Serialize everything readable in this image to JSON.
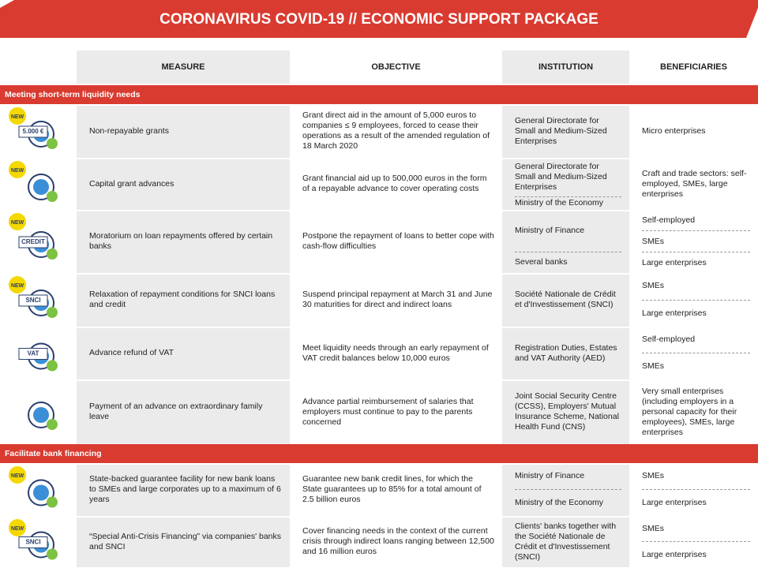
{
  "title": "CORONAVIRUS COVID-19 // ECONOMIC SUPPORT PACKAGE",
  "table": {
    "headers": [
      "MEASURE",
      "OBJECTIVE",
      "INSTITUTION",
      "BENEFICIARIES"
    ],
    "sections": [
      {
        "name": "Meeting short-term liquidity needs",
        "rows": [
          {
            "icon_texts": [
              "NEW",
              "5.000 €"
            ],
            "measure": "Non-repayable grants",
            "objective": "Grant direct aid in the amount of 5,000 euros to companies ≤ 9 employees, forced to cease their operations as a result of the amended regulation of 18 March 2020",
            "institutions": [
              "General Directorate for Small and Medium-Sized Enterprises"
            ],
            "beneficiaries": [
              "Micro enterprises"
            ]
          },
          {
            "icon_texts": [
              "NEW"
            ],
            "measure": "Capital grant advances",
            "objective": "Grant financial aid up to 500,000 euros in the form of a repayable advance to cover operating costs",
            "institutions": [
              "General Directorate for Small and Medium-Sized Enterprises",
              "Ministry of the Economy"
            ],
            "beneficiaries": [
              "Craft and trade sectors: self-employed, SMEs, large enterprises"
            ]
          },
          {
            "icon_texts": [
              "NEW",
              "CREDIT"
            ],
            "measure": "Moratorium on loan repayments offered by certain banks",
            "objective": "Postpone the repayment of loans to better cope with cash-flow difficulties",
            "institutions": [
              "Ministry of Finance",
              "Several banks"
            ],
            "beneficiaries": [
              "Self-employed",
              "SMEs",
              "Large enterprises"
            ]
          },
          {
            "icon_texts": [
              "NEW",
              "SNCI"
            ],
            "measure": "Relaxation of repayment conditions for SNCI loans and credit",
            "objective": "Suspend principal repayment at March 31 and June 30 maturities for direct and indirect loans",
            "institutions": [
              "Société Nationale de Crédit et d'Investissement (SNCI)"
            ],
            "beneficiaries": [
              "SMEs",
              "Large enterprises"
            ]
          },
          {
            "icon_texts": [
              "VAT"
            ],
            "measure": "Advance refund of VAT",
            "objective": "Meet liquidity needs through an early repayment of VAT credit balances below 10,000 euros",
            "institutions": [
              "Registration Duties, Estates and VAT Authority (AED)"
            ],
            "beneficiaries": [
              "Self-employed",
              "SMEs"
            ]
          },
          {
            "icon_texts": [],
            "measure": "Payment of an advance on extraordinary family leave",
            "objective": "Advance partial reimbursement of salaries that employers must continue to pay to the parents concerned",
            "institutions": [
              "Joint Social Security Centre (CCSS), Employers' Mutual Insurance Scheme, National Health Fund (CNS)"
            ],
            "beneficiaries": [
              "Very small enterprises (including employers in a personal capacity for their employees), SMEs, large enterprises"
            ]
          }
        ]
      },
      {
        "name": "Facilitate bank financing",
        "rows": [
          {
            "icon_texts": [
              "NEW"
            ],
            "measure": "State-backed guarantee facility for new bank loans to SMEs and large corporates up to a maximum of 6 years",
            "objective": "Guarantee new bank credit lines, for which the State guarantees up to 85% for a total amount of 2.5 billion euros",
            "institutions": [
              "Ministry of Finance",
              "Ministry of the Economy"
            ],
            "beneficiaries": [
              "SMEs",
              "Large enterprises"
            ]
          },
          {
            "icon_texts": [
              "NEW",
              "SNCI"
            ],
            "measure": "“Special Anti-Crisis Financing” via companies' banks and SNCI",
            "objective": "Cover financing needs in the context of the current crisis through indirect loans ranging between 12,500 and 16 million euros",
            "institutions": [
              "Clients' banks together with the Société Nationale de Crédit et d'Investissement (SNCI)"
            ],
            "beneficiaries": [
              "SMEs",
              "Large enterprises"
            ]
          }
        ]
      }
    ]
  }
}
